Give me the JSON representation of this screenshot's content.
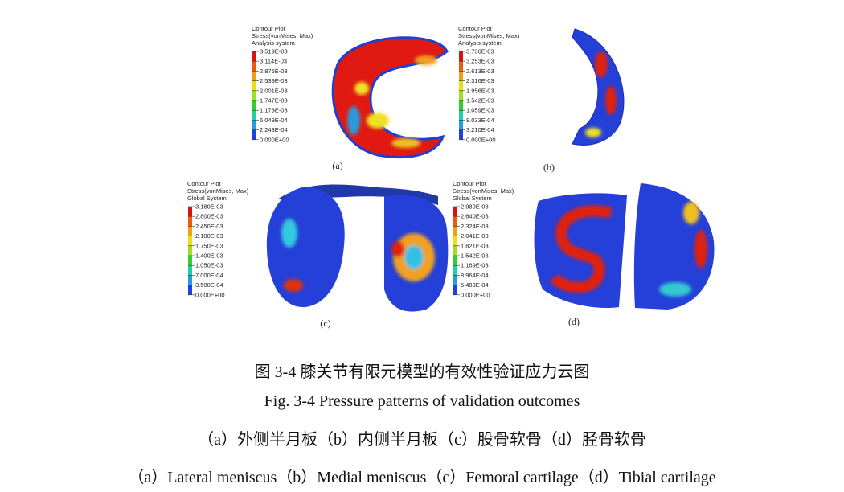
{
  "panels": [
    {
      "label": "(a)",
      "legend": {
        "title": [
          "Contour Plot",
          "Stress(vonMises, Max)",
          "Analysis system"
        ],
        "levels": [
          "3.519E-03",
          "3.114E-03",
          "2.876E-03",
          "2.539E-03",
          "2.001E-03",
          "1.747E-03",
          "1.173E-03",
          "6.049E-04",
          "2.243E-04",
          "0.000E+00"
        ]
      }
    },
    {
      "label": "(b)",
      "legend": {
        "title": [
          "Contour Plot",
          "Stress(vonMises, Max)",
          "Analysis system"
        ],
        "levels": [
          "3.736E-03",
          "3.253E-03",
          "2.613E-03",
          "2.316E-03",
          "1.956E-03",
          "1.542E-03",
          "1.059E-03",
          "8.033E-04",
          "3.210E-04",
          "0.000E+00"
        ]
      }
    },
    {
      "label": "(c)",
      "legend": {
        "title": [
          "Contour Plot",
          "Stress(vonMises, Max)",
          "Global System"
        ],
        "levels": [
          "3.180E-03",
          "2.800E-03",
          "2.450E-03",
          "2.100E-03",
          "1.750E-03",
          "1.400E-03",
          "1.050E-03",
          "7.000E-04",
          "3.500E-04",
          "0.000E+00"
        ]
      }
    },
    {
      "label": "(d)",
      "legend": {
        "title": [
          "Contour Plot",
          "Stress(vonMises, Max)",
          "Global System"
        ],
        "levels": [
          "2.980E-03",
          "2.640E-03",
          "2.324E-03",
          "2.041E-03",
          "1.821E-03",
          "1.542E-03",
          "1.169E-03",
          "8.964E-04",
          "5.483E-04",
          "0.000E+00"
        ]
      }
    }
  ],
  "caption": {
    "zh": "图 3-4  膝关节有限元模型的有效性验证应力云图",
    "en": "Fig. 3-4 Pressure patterns of validation outcomes",
    "parts_zh": "（a）外侧半月板（b）内侧半月板（c）股骨软骨（d）胫骨软骨",
    "parts_en": "（a）Lateral meniscus（b）Medial meniscus（c）Femoral cartilage（d）Tibial cartilage"
  }
}
